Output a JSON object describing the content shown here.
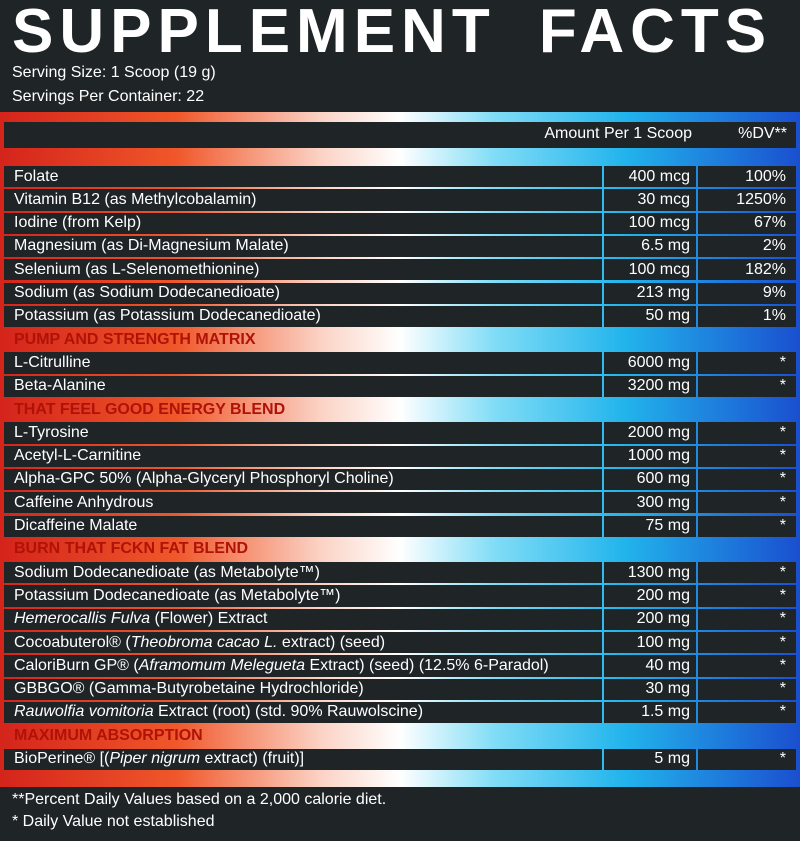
{
  "header": {
    "title": "SUPPLEMENT FACTS",
    "serving_size": "Serving Size: 1 Scoop (19 g)",
    "servings_per_container": "Servings Per Container: 22"
  },
  "table": {
    "columns": [
      "Amount Per 1 Scoop",
      "%DV**"
    ],
    "rows": [
      {
        "name": [
          {
            "text": "Folate"
          }
        ],
        "amount": "400 mcg",
        "dv": "100%"
      },
      {
        "name": [
          {
            "text": "Vitamin B12 (as Methylcobalamin)"
          }
        ],
        "amount": "30 mcg",
        "dv": "1250%"
      },
      {
        "name": [
          {
            "text": "Iodine (from Kelp)"
          }
        ],
        "amount": "100 mcg",
        "dv": "67%"
      },
      {
        "name": [
          {
            "text": "Magnesium (as Di-Magnesium Malate)"
          }
        ],
        "amount": "6.5 mg",
        "dv": "2%"
      },
      {
        "name": [
          {
            "text": "Selenium (as L-Selenomethionine)"
          }
        ],
        "amount": "100 mcg",
        "dv": "182%"
      },
      {
        "name": [
          {
            "text": "Sodium (as Sodium Dodecanedioate)"
          }
        ],
        "amount": "213 mg",
        "dv": "9%"
      },
      {
        "name": [
          {
            "text": "Potassium (as Potassium Dodecanedioate)"
          }
        ],
        "amount": "50 mg",
        "dv": "1%"
      },
      {
        "section": "PUMP AND STRENGTH MATRIX"
      },
      {
        "name": [
          {
            "text": "L-Citrulline"
          }
        ],
        "amount": "6000 mg",
        "dv": "*"
      },
      {
        "name": [
          {
            "text": "Beta-Alanine"
          }
        ],
        "amount": "3200 mg",
        "dv": "*"
      },
      {
        "section": "THAT FEEL GOOD ENERGY BLEND"
      },
      {
        "name": [
          {
            "text": "L-Tyrosine"
          }
        ],
        "amount": "2000 mg",
        "dv": "*"
      },
      {
        "name": [
          {
            "text": "Acetyl-L-Carnitine"
          }
        ],
        "amount": "1000 mg",
        "dv": "*"
      },
      {
        "name": [
          {
            "text": "Alpha-GPC 50% (Alpha-Glyceryl Phosphoryl Choline)"
          }
        ],
        "amount": "600 mg",
        "dv": "*"
      },
      {
        "name": [
          {
            "text": "Caffeine Anhydrous"
          }
        ],
        "amount": "300 mg",
        "dv": "*"
      },
      {
        "name": [
          {
            "text": "Dicaffeine Malate"
          }
        ],
        "amount": "75 mg",
        "dv": "*"
      },
      {
        "section": "BURN THAT FCKN FAT BLEND"
      },
      {
        "name": [
          {
            "text": "Sodium Dodecanedioate (as Metabolyte™)"
          }
        ],
        "amount": "1300 mg",
        "dv": "*"
      },
      {
        "name": [
          {
            "text": "Potassium Dodecanedioate (as Metabolyte™)"
          }
        ],
        "amount": "200 mg",
        "dv": "*"
      },
      {
        "name": [
          {
            "text": "Hemerocallis Fulva",
            "italic": true
          },
          {
            "text": " (Flower) Extract"
          }
        ],
        "amount": "200 mg",
        "dv": "*"
      },
      {
        "name": [
          {
            "text": "Cocoabuterol® ("
          },
          {
            "text": "Theobroma cacao L.",
            "italic": true
          },
          {
            "text": " extract) (seed)"
          }
        ],
        "amount": "100 mg",
        "dv": "*"
      },
      {
        "name": [
          {
            "text": "CaloriBurn GP® ("
          },
          {
            "text": "Aframomum Melegueta",
            "italic": true
          },
          {
            "text": " Extract) (seed) (12.5% 6-Paradol)"
          }
        ],
        "amount": "40 mg",
        "dv": "*"
      },
      {
        "name": [
          {
            "text": "GBBGO® (Gamma-Butyrobetaine Hydrochloride)"
          }
        ],
        "amount": "30 mg",
        "dv": "*"
      },
      {
        "name": [
          {
            "text": "Rauwolfia vomitoria",
            "italic": true
          },
          {
            "text": " Extract (root) (std. 90% Rauwolscine)"
          }
        ],
        "amount": "1.5 mg",
        "dv": "*"
      },
      {
        "section": "MAXIMUM ABSORPTION"
      },
      {
        "name": [
          {
            "text": "BioPerine® [("
          },
          {
            "text": "Piper nigrum",
            "italic": true
          },
          {
            "text": " extract) (fruit)]"
          }
        ],
        "amount": "5 mg",
        "dv": "*"
      }
    ]
  },
  "footnotes": [
    "**Percent Daily Values based on a 2,000 calorie diet.",
    "* Daily Value not established"
  ]
}
